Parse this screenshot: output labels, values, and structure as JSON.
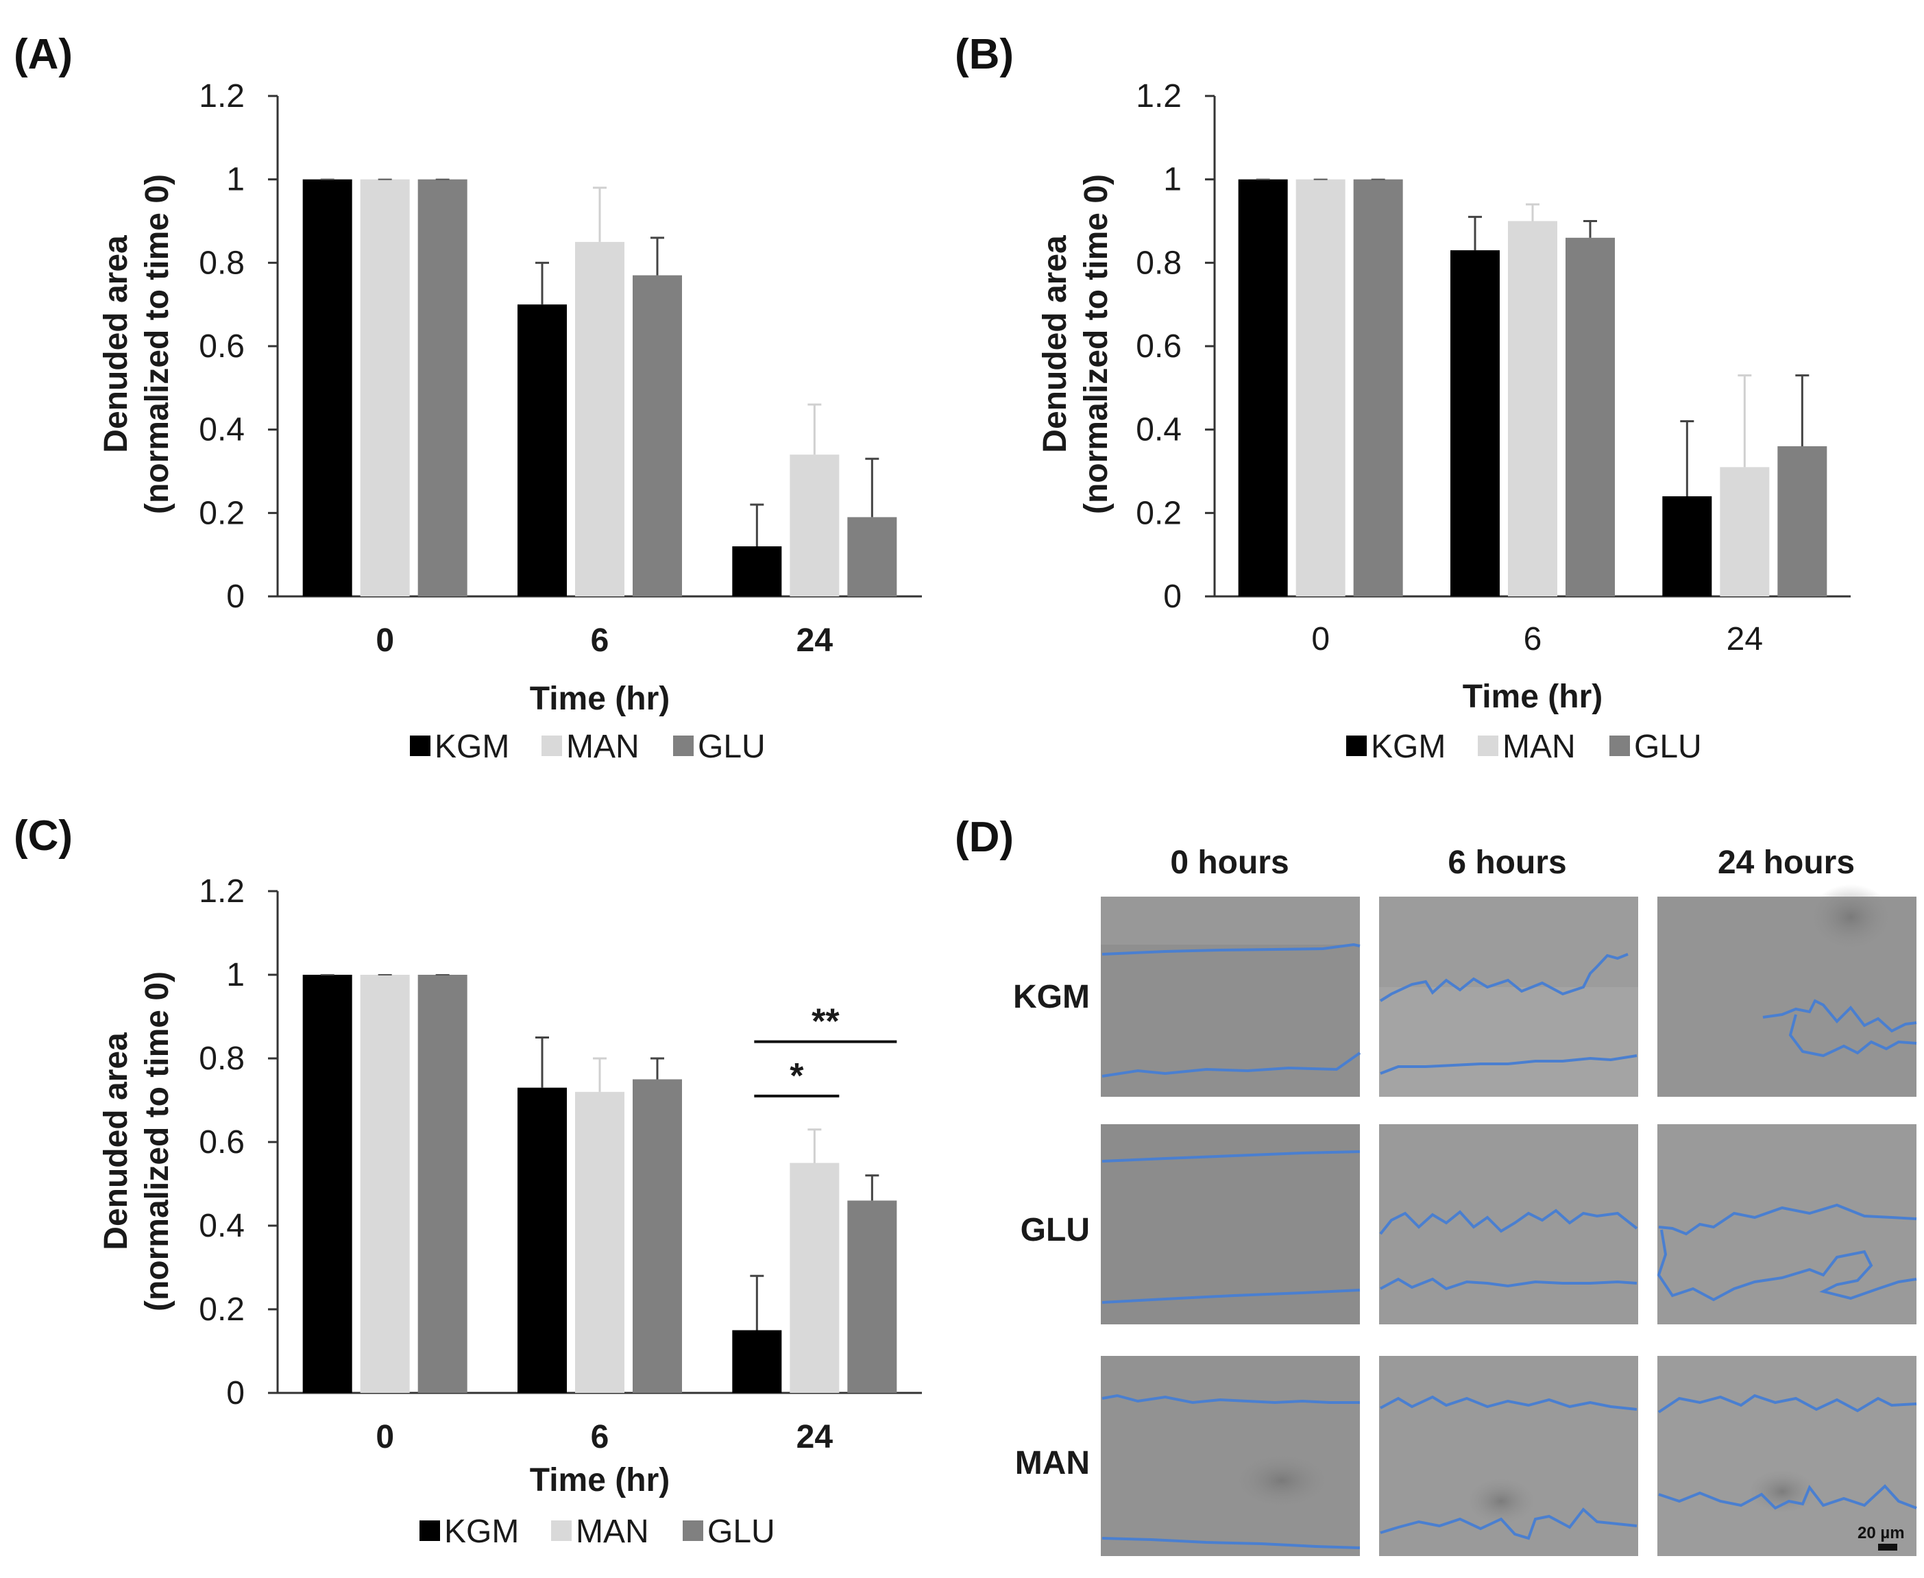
{
  "panel_d": {
    "label": "(D)",
    "columns": [
      "0 hours",
      "6 hours",
      "24 hours"
    ],
    "rows": [
      "KGM",
      "GLU",
      "MAN"
    ],
    "scale_bar": "20 µm",
    "colors": {
      "tile": "#8f8f8f",
      "tile_light": "#a3a3a3",
      "edge": "#4a7fd0"
    }
  },
  "chart_data": [
    {
      "type": "bar",
      "panel": "(A)",
      "title": "",
      "xlabel": "Time (hr)",
      "ylabel": "Denuded area\n(normalized to time 0)",
      "categories": [
        "0",
        "6",
        "24"
      ],
      "bold_categories": true,
      "ylim": [
        0,
        1.2
      ],
      "yticks": [
        "0",
        "0.2",
        "0.4",
        "0.6",
        "0.8",
        "1",
        "1.2"
      ],
      "series": [
        {
          "name": "KGM",
          "color": "#000000",
          "values": [
            1.0,
            0.7,
            0.12
          ],
          "errors": [
            0.0,
            0.1,
            0.1
          ]
        },
        {
          "name": "MAN",
          "color": "#d9d9d9",
          "values": [
            1.0,
            0.85,
            0.34
          ],
          "errors": [
            0.0,
            0.13,
            0.12
          ]
        },
        {
          "name": "GLU",
          "color": "#808080",
          "values": [
            1.0,
            0.77,
            0.19
          ],
          "errors": [
            0.0,
            0.09,
            0.14
          ]
        }
      ],
      "significance": []
    },
    {
      "type": "bar",
      "panel": "(B)",
      "title": "",
      "xlabel": "Time (hr)",
      "ylabel": "Denuded area\n(normalized to time 0)",
      "categories": [
        "0",
        "6",
        "24"
      ],
      "bold_categories": false,
      "ylim": [
        0,
        1.2
      ],
      "yticks": [
        "0",
        "0.2",
        "0.4",
        "0.6",
        "0.8",
        "1",
        "1.2"
      ],
      "series": [
        {
          "name": "KGM",
          "color": "#000000",
          "values": [
            1.0,
            0.83,
            0.24
          ],
          "errors": [
            0.0,
            0.08,
            0.18
          ]
        },
        {
          "name": "MAN",
          "color": "#d9d9d9",
          "values": [
            1.0,
            0.9,
            0.31
          ],
          "errors": [
            0.0,
            0.04,
            0.22
          ]
        },
        {
          "name": "GLU",
          "color": "#808080",
          "values": [
            1.0,
            0.86,
            0.36
          ],
          "errors": [
            0.0,
            0.04,
            0.17
          ]
        }
      ],
      "significance": []
    },
    {
      "type": "bar",
      "panel": "(C)",
      "title": "",
      "xlabel": "Time (hr)",
      "ylabel": "Denuded area\n(normalized to time 0)",
      "categories": [
        "0",
        "6",
        "24"
      ],
      "bold_categories": true,
      "ylim": [
        0,
        1.2
      ],
      "yticks": [
        "0",
        "0.2",
        "0.4",
        "0.6",
        "0.8",
        "1",
        "1.2"
      ],
      "series": [
        {
          "name": "KGM",
          "color": "#000000",
          "values": [
            1.0,
            0.73,
            0.15
          ],
          "errors": [
            0.0,
            0.12,
            0.13
          ]
        },
        {
          "name": "MAN",
          "color": "#d9d9d9",
          "values": [
            1.0,
            0.72,
            0.55
          ],
          "errors": [
            0.0,
            0.08,
            0.08
          ]
        },
        {
          "name": "GLU",
          "color": "#808080",
          "values": [
            1.0,
            0.75,
            0.46
          ],
          "errors": [
            0.0,
            0.05,
            0.06
          ]
        }
      ],
      "significance": [
        {
          "label": "*",
          "category": "24",
          "from": "KGM",
          "to": "MAN",
          "y": 0.71
        },
        {
          "label": "**",
          "category": "24",
          "from": "KGM",
          "to": "GLU",
          "y": 0.84
        }
      ]
    }
  ]
}
